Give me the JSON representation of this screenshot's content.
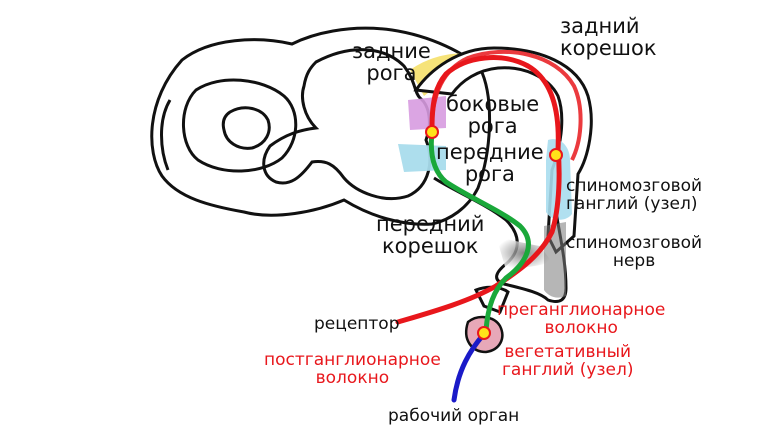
{
  "labels": {
    "posterior_horns": "задние\nрога",
    "dorsal_root": "задний\nкорешок",
    "lateral_horns": "боковые\nрога",
    "anterior_horns": "передние\nрога",
    "spinal_ganglion": "спиномозговой\nганглий (узел)",
    "anterior_root": "передний\nкорешок",
    "spinal_nerve": "спиномозговой\nнерв",
    "receptor": "рецептор",
    "preganglionic_fiber": "преганглионарное\nволокно",
    "postganglionic_fiber": "постганглионарное\nволокно",
    "autonomic_ganglion": "вегетативный\nганглий (узел)",
    "effector": "рабочий орган"
  },
  "colors": {
    "sensory_pathway": "#e8171c",
    "preganglionic_pathway": "#1aa83a",
    "postganglionic_pathway": "#1a1ac8",
    "posterior_horn_highlight": "#f5e06a",
    "lateral_horn_highlight": "#d79be0",
    "anterior_horn_highlight": "#a9dcec",
    "ganglion_fill": "#a8ddee",
    "nerve_fill": "#7a7a7a",
    "autonomic_ganglion_fill": "#e7a8b8",
    "neuron_body": "#ffe21a"
  }
}
